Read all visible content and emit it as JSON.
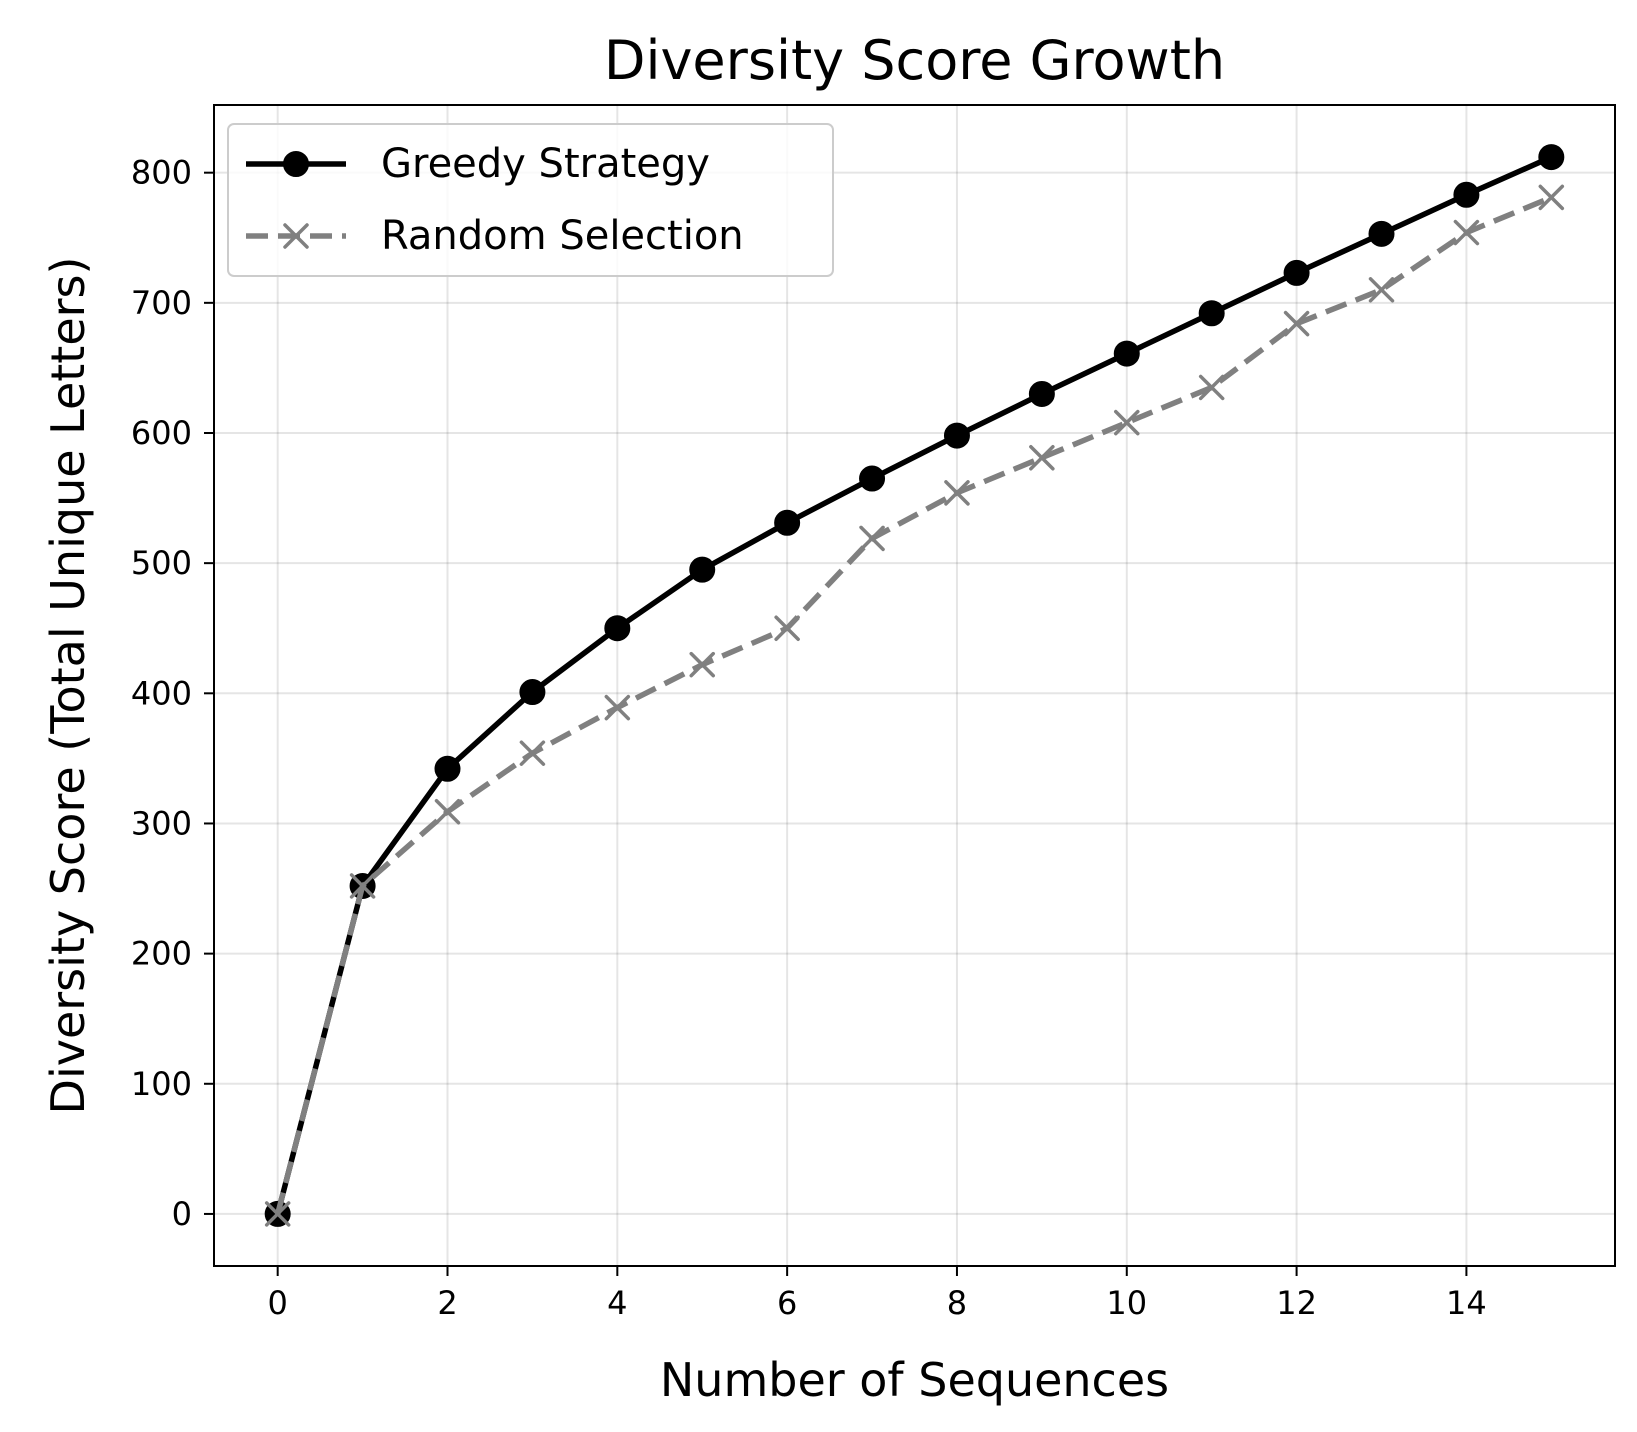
{
  "chart_data": {
    "type": "line",
    "title": "Diversity Score Growth",
    "xlabel": "Number of Sequences",
    "ylabel": "Diversity Score (Total Unique Letters)",
    "xlim": [
      -0.75,
      15.75
    ],
    "ylim": [
      -40,
      852
    ],
    "xticks": [
      0,
      2,
      4,
      6,
      8,
      10,
      12,
      14
    ],
    "yticks": [
      0,
      100,
      200,
      300,
      400,
      500,
      600,
      700,
      800
    ],
    "grid": true,
    "legend_position": "upper-left",
    "x": [
      0,
      1,
      2,
      3,
      4,
      5,
      6,
      7,
      8,
      9,
      10,
      11,
      12,
      13,
      14,
      15
    ],
    "series": [
      {
        "name": "Greedy Strategy",
        "color": "#000000",
        "line_style": "solid",
        "marker": "circle",
        "values": [
          0,
          252,
          342,
          401,
          450,
          495,
          531,
          565,
          598,
          630,
          661,
          692,
          723,
          753,
          783,
          812
        ]
      },
      {
        "name": "Random Selection",
        "color": "#808080",
        "line_style": "dashed",
        "marker": "x",
        "values": [
          0,
          252,
          309,
          354,
          389,
          422,
          450,
          519,
          554,
          581,
          608,
          635,
          684,
          710,
          754,
          781
        ]
      }
    ]
  }
}
